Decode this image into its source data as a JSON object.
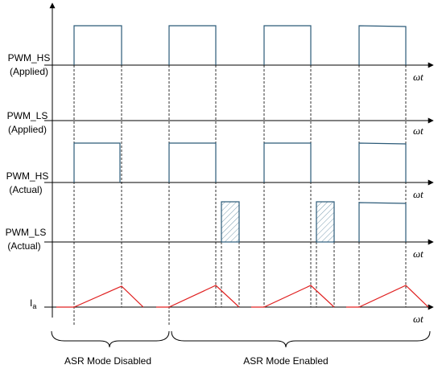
{
  "signals": [
    {
      "line1": "PWM_HS",
      "line2": "(Applied)"
    },
    {
      "line1": "PWM_LS",
      "line2": "(Applied)"
    },
    {
      "line1": "PWM_HS",
      "line2": "(Actual)"
    },
    {
      "line1": "PWM_LS",
      "line2": "(Actual)"
    },
    {
      "line1": "I",
      "sub": "a"
    }
  ],
  "axis_label": "ωt",
  "modes": {
    "disabled": "ASR Mode Disabled",
    "enabled": "ASR Mode Enabled"
  },
  "colors": {
    "waveform": "#2b5a78",
    "current": "#e02020",
    "hatch": "#7a9cb0"
  }
}
